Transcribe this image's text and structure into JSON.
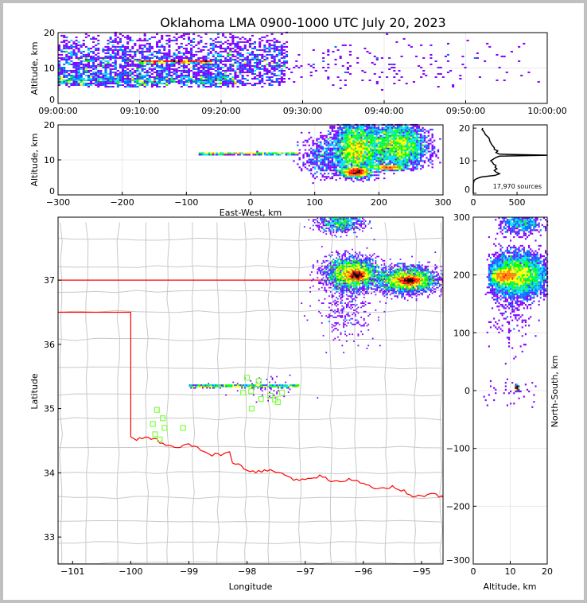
{
  "chart_data": {
    "type": "heatmap",
    "title": "Oklahoma LMA 0900-1000 UTC July 20, 2023",
    "colors": {
      "scale": [
        "#8000ff",
        "#0070ff",
        "#00e0ff",
        "#00ff00",
        "#ffff00",
        "#ff8000",
        "#ff0000",
        "#000000"
      ],
      "state_border": "#ff0000",
      "county_border": "#c8c8c8",
      "station": "#80ff40",
      "frame": "#c0c0c0"
    },
    "panels": [
      {
        "id": "time-altitude",
        "ylabel": "Altitude, km",
        "xlabel": "",
        "xlim": [
          0,
          60
        ],
        "ylim": [
          0,
          20
        ],
        "xticks": [
          0,
          10,
          20,
          30,
          40,
          50,
          60
        ],
        "xtick_labels": [
          "09:00:00",
          "09:10:00",
          "09:20:00",
          "09:30:00",
          "09:40:00",
          "09:50:00",
          "10:00:00"
        ],
        "yticks": [
          0,
          10,
          20
        ],
        "ytick_labels": [
          "0",
          "10",
          "20"
        ],
        "bin": [
          0.3,
          0.45
        ],
        "clusters": [
          {
            "x": [
              0,
              28
            ],
            "ymean": 11,
            "ysd": 4.5,
            "ymin": 4.5,
            "ymax": 20,
            "n": 2600
          },
          {
            "x": [
              0,
              22
            ],
            "ymean": 6.5,
            "ysd": 1,
            "ymin": 4.5,
            "ymax": 9,
            "n": 700
          },
          {
            "x": [
              28,
              60
            ],
            "ymean": 11,
            "ysd": 4,
            "ymin": 4,
            "ymax": 20,
            "n": 260,
            "decay": true
          },
          {
            "x": [
              10,
              19
            ],
            "ymean": 11.8,
            "ysd": 0.15,
            "ymin": 11,
            "ymax": 12.5,
            "n": 400
          }
        ]
      },
      {
        "id": "eastwest-altitude",
        "ylabel": "Altitude, km",
        "xlabel": "East-West, km",
        "xlim": [
          -300,
          300
        ],
        "ylim": [
          0,
          20
        ],
        "xticks": [
          -300,
          -200,
          -100,
          0,
          100,
          200,
          300
        ],
        "xtick_labels": [
          "−300",
          "−200",
          "−100",
          "0",
          "100",
          "200",
          "300"
        ],
        "yticks": [
          0,
          10,
          20
        ],
        "ytick_labels": [
          "0",
          "10",
          "20"
        ],
        "bin": [
          3,
          0.45
        ],
        "clusters": [
          {
            "xmean": 165,
            "xsd": 18,
            "ymean": 13,
            "ysd": 4,
            "ymin": 4,
            "ymax": 20,
            "n": 3500
          },
          {
            "xmean": 230,
            "xsd": 22,
            "ymean": 14,
            "ysd": 3.5,
            "ymin": 7,
            "ymax": 20,
            "n": 3000
          },
          {
            "xmean": 165,
            "xsd": 10,
            "ymean": 6.5,
            "ysd": 0.6,
            "ymin": 5,
            "ymax": 8,
            "n": 1200
          },
          {
            "xmean": 215,
            "xsd": 12,
            "ymean": 7.8,
            "ysd": 0.4,
            "ymin": 7,
            "ymax": 8.5,
            "n": 500
          },
          {
            "xmean": 110,
            "xsd": 15,
            "ymean": 11,
            "ysd": 3,
            "ymin": 3,
            "ymax": 18,
            "n": 400
          },
          {
            "x": [
              -80,
              75
            ],
            "ymean": 11.8,
            "ysd": 0.12,
            "ymin": 11.3,
            "ymax": 12.3,
            "n": 500
          }
        ]
      },
      {
        "id": "altitude-histogram",
        "xlim": [
          0,
          845
        ],
        "ylim": [
          -0.5,
          21
        ],
        "xticks": [
          0,
          500
        ],
        "xtick_labels": [
          "0",
          "500"
        ],
        "yticks": [
          0,
          10,
          20
        ],
        "ytick_labels": [
          "0",
          "10",
          "20"
        ],
        "annotation": "17,970 sources",
        "altitude_km": [
          0,
          1,
          2,
          3,
          4,
          4.5,
          5,
          5.5,
          6,
          6.5,
          7,
          7.5,
          8,
          8.5,
          9,
          9.5,
          10,
          10.5,
          11,
          11.4,
          11.7,
          12,
          12.5,
          13,
          13.5,
          14,
          15,
          16,
          17,
          18,
          19,
          19.6,
          20
        ],
        "counts": [
          0,
          0,
          0,
          2,
          10,
          40,
          90,
          250,
          300,
          260,
          240,
          270,
          250,
          260,
          230,
          220,
          200,
          230,
          260,
          300,
          845,
          300,
          260,
          280,
          240,
          240,
          210,
          190,
          180,
          140,
          120,
          100,
          110
        ]
      },
      {
        "id": "plan-view",
        "xlabel": "Longitude",
        "ylabel": "Latitude",
        "xlim": [
          -101.25,
          -94.63
        ],
        "ylim": [
          32.58,
          37.98
        ],
        "xticks": [
          -101,
          -100,
          -99,
          -98,
          -97,
          -96,
          -95
        ],
        "xtick_labels": [
          "−101",
          "−100",
          "−99",
          "−98",
          "−97",
          "−96",
          "−95"
        ],
        "yticks": [
          33,
          34,
          35,
          36,
          37
        ],
        "ytick_labels": [
          "33",
          "34",
          "35",
          "36",
          "37"
        ],
        "bin": [
          0.025,
          0.022
        ],
        "clusters": [
          {
            "xmean": -96.2,
            "xsd": 0.22,
            "ymean": 37.1,
            "ysd": 0.12,
            "n": 3200
          },
          {
            "xmean": -95.25,
            "xsd": 0.25,
            "ymean": 37.0,
            "ysd": 0.1,
            "n": 3000
          },
          {
            "xmean": -96.1,
            "xsd": 0.08,
            "ymean": 37.07,
            "ysd": 0.04,
            "n": 900
          },
          {
            "xmean": -95.2,
            "xsd": 0.1,
            "ymean": 36.99,
            "ysd": 0.03,
            "n": 900
          },
          {
            "xmean": -96.4,
            "xsd": 0.2,
            "ymean": 37.9,
            "ysd": 0.08,
            "n": 700
          },
          {
            "xmean": -96.3,
            "xsd": 0.25,
            "ymean": 36.55,
            "ysd": 0.25,
            "n": 300
          },
          {
            "x": [
              -99.0,
              -97.1
            ],
            "ymean": 35.35,
            "ysd": 0.01,
            "n": 700
          },
          {
            "xmean": -97.7,
            "xsd": 0.3,
            "ymean": 35.3,
            "ysd": 0.1,
            "n": 60
          }
        ],
        "stations_lonlat": [
          [
            -99.55,
            34.98
          ],
          [
            -99.62,
            34.76
          ],
          [
            -99.45,
            34.85
          ],
          [
            -99.42,
            34.7
          ],
          [
            -99.58,
            34.6
          ],
          [
            -99.5,
            34.52
          ],
          [
            -99.1,
            34.7
          ],
          [
            -98.0,
            35.48
          ],
          [
            -98.07,
            35.25
          ],
          [
            -97.93,
            35.27
          ],
          [
            -97.92,
            35.0
          ],
          [
            -97.8,
            35.43
          ],
          [
            -97.76,
            35.15
          ],
          [
            -97.6,
            35.2
          ],
          [
            -97.52,
            35.14
          ],
          [
            -97.4,
            35.25
          ],
          [
            -97.47,
            35.1
          ]
        ]
      },
      {
        "id": "altitude-northsouth",
        "xlabel": "Altitude, km",
        "ylabel": "North-South, km",
        "xlim": [
          0,
          20
        ],
        "ylim": [
          -300,
          300
        ],
        "xticks": [
          0,
          10,
          20
        ],
        "xtick_labels": [
          "0",
          "10",
          "20"
        ],
        "yticks": [
          -300,
          -200,
          -100,
          0,
          100,
          200,
          300
        ],
        "ytick_labels": [
          "−300",
          "−200",
          "−100",
          "0",
          "100",
          "200",
          "300"
        ],
        "bin": [
          0.45,
          3
        ],
        "clusters": [
          {
            "xmean": 12,
            "xsd": 4,
            "xmin": 4,
            "xmax": 20,
            "ymean": 200,
            "ysd": 18,
            "n": 5000
          },
          {
            "xmean": 8,
            "xsd": 2,
            "xmin": 5,
            "xmax": 12,
            "ymean": 198,
            "ysd": 6,
            "n": 1500
          },
          {
            "xmean": 13,
            "xsd": 3,
            "xmin": 6,
            "xmax": 20,
            "ymean": 290,
            "ysd": 10,
            "n": 600
          },
          {
            "xmean": 10,
            "xsd": 3,
            "xmin": 3,
            "xmax": 20,
            "ymean": 130,
            "ysd": 30,
            "n": 150
          },
          {
            "xmean": 11.8,
            "xsd": 0.2,
            "xmin": 11,
            "xmax": 12.5,
            "ymean": 5,
            "ysd": 2,
            "n": 400
          },
          {
            "xmean": 10,
            "xsd": 5,
            "xmin": 0,
            "xmax": 20,
            "ymean": 0,
            "ysd": 15,
            "n": 40
          }
        ]
      }
    ]
  }
}
